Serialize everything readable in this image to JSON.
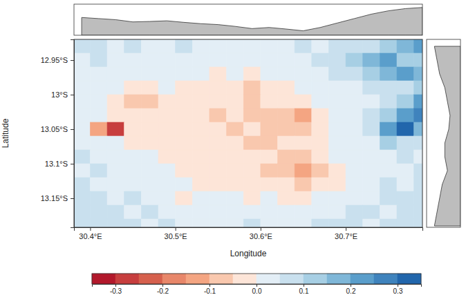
{
  "chart_data": {
    "type": "heatmap",
    "x_label": "Longitude",
    "y_label": "Latitude",
    "xlim": [
      30.381,
      30.79
    ],
    "ylim": [
      -13.192,
      -12.92
    ],
    "xticks": [
      {
        "value": 30.4,
        "label": "30.4°E"
      },
      {
        "value": 30.5,
        "label": "30.5°E"
      },
      {
        "value": 30.6,
        "label": "30.6°E"
      },
      {
        "value": 30.7,
        "label": "30.7°E"
      }
    ],
    "yticks": [
      {
        "value": -12.95,
        "label": "12.95°S"
      },
      {
        "value": -13,
        "label": "13°S"
      },
      {
        "value": -13.05,
        "label": "13.05°S"
      },
      {
        "value": -13.1,
        "label": "13.1°S"
      },
      {
        "value": -13.15,
        "label": "13.15°S"
      }
    ],
    "x_bins": [
      30.38,
      30.4,
      30.42,
      30.44,
      30.46,
      30.48,
      30.5,
      30.52,
      30.54,
      30.56,
      30.58,
      30.6,
      30.62,
      30.64,
      30.66,
      30.68,
      30.7,
      30.72,
      30.74,
      30.76,
      30.78,
      30.8
    ],
    "y_bins": [
      -12.92,
      -12.94,
      -12.96,
      -12.98,
      -13,
      -13.02,
      -13.04,
      -13.06,
      -13.08,
      -13.1,
      -13.12,
      -13.14,
      -13.16,
      -13.18,
      -13.2
    ],
    "z": [
      [
        0.05,
        0.06,
        0.04,
        0.05,
        0.03,
        0.04,
        0.05,
        0.03,
        0.04,
        0.02,
        0.03,
        0.04,
        0.03,
        0.05,
        0.04,
        0.06,
        0.05,
        0.08,
        0.12,
        0.15,
        0.22
      ],
      [
        0.04,
        0.05,
        0.03,
        0.04,
        0.02,
        0.03,
        0.02,
        0.03,
        0.01,
        0.02,
        0.01,
        0.02,
        0.03,
        0.04,
        0.06,
        0.08,
        0.12,
        0.18,
        0.22,
        0.12,
        0.1
      ],
      [
        0.03,
        0.04,
        0.02,
        0.01,
        0.02,
        0.01,
        0.0,
        0.01,
        -0.01,
        0.0,
        -0.02,
        0.01,
        0.02,
        0.03,
        0.04,
        0.05,
        0.07,
        0.1,
        0.16,
        0.24,
        0.18
      ],
      [
        0.03,
        0.02,
        0.01,
        -0.03,
        -0.02,
        0.0,
        -0.01,
        -0.02,
        -0.03,
        -0.04,
        -0.06,
        -0.03,
        -0.02,
        0.0,
        0.02,
        0.03,
        0.04,
        0.05,
        0.06,
        0.08,
        0.12
      ],
      [
        0.02,
        0.01,
        -0.02,
        -0.06,
        -0.08,
        -0.03,
        -0.02,
        -0.03,
        -0.04,
        -0.05,
        -0.07,
        -0.05,
        -0.04,
        -0.03,
        0.01,
        0.02,
        0.03,
        0.04,
        0.08,
        0.14,
        0.2
      ],
      [
        0.02,
        0.0,
        -0.01,
        -0.04,
        -0.05,
        -0.02,
        -0.03,
        -0.04,
        -0.06,
        -0.05,
        -0.08,
        -0.06,
        -0.1,
        -0.14,
        -0.04,
        0.0,
        0.02,
        0.05,
        0.12,
        0.22,
        0.28
      ],
      [
        0.03,
        -0.12,
        -0.28,
        -0.03,
        -0.02,
        -0.01,
        -0.03,
        -0.05,
        -0.04,
        -0.06,
        -0.05,
        -0.07,
        -0.09,
        -0.06,
        -0.03,
        0.0,
        0.03,
        0.08,
        0.24,
        0.3,
        0.18
      ],
      [
        0.04,
        0.02,
        0.0,
        -0.01,
        -0.02,
        -0.01,
        -0.02,
        -0.04,
        -0.03,
        -0.05,
        -0.07,
        -0.06,
        -0.05,
        -0.04,
        -0.02,
        0.0,
        0.02,
        0.04,
        0.1,
        0.08,
        0.06
      ],
      [
        0.05,
        0.03,
        0.02,
        0.01,
        0.0,
        -0.01,
        -0.02,
        -0.03,
        -0.04,
        -0.03,
        -0.05,
        -0.04,
        -0.07,
        -0.06,
        -0.03,
        0.0,
        0.02,
        0.03,
        0.04,
        0.05,
        0.04
      ],
      [
        0.04,
        0.05,
        0.03,
        0.02,
        0.01,
        0.0,
        -0.01,
        -0.02,
        -0.03,
        -0.02,
        -0.04,
        -0.06,
        -0.09,
        -0.12,
        -0.08,
        -0.02,
        0.01,
        0.03,
        0.04,
        0.03,
        0.05
      ],
      [
        0.05,
        0.04,
        0.03,
        0.02,
        0.03,
        0.01,
        0.0,
        -0.01,
        -0.02,
        -0.01,
        -0.02,
        -0.03,
        -0.04,
        -0.07,
        -0.05,
        -0.01,
        0.02,
        0.03,
        0.05,
        0.04,
        0.06
      ],
      [
        0.06,
        0.05,
        0.04,
        0.05,
        0.03,
        0.02,
        -0.04,
        0.01,
        0.0,
        0.01,
        -0.01,
        0.0,
        -0.02,
        -0.01,
        0.0,
        0.02,
        0.03,
        0.04,
        0.05,
        0.06,
        0.05
      ],
      [
        0.05,
        0.07,
        0.06,
        0.04,
        0.05,
        0.03,
        0.02,
        0.03,
        0.02,
        0.03,
        0.01,
        0.02,
        0.01,
        0.02,
        0.03,
        0.04,
        0.05,
        0.06,
        0.04,
        0.05,
        0.06
      ],
      [
        0.06,
        0.05,
        0.07,
        0.06,
        0.04,
        0.05,
        0.04,
        0.03,
        0.04,
        0.03,
        0.05,
        0.04,
        0.03,
        0.04,
        0.05,
        0.06,
        0.05,
        0.04,
        0.06,
        0.07,
        0.05
      ]
    ],
    "colorbar": {
      "range": [
        -0.35,
        0.35
      ],
      "breaks": [
        -0.35,
        -0.3,
        -0.25,
        -0.2,
        -0.15,
        -0.1,
        -0.05,
        0,
        0.05,
        0.1,
        0.15,
        0.2,
        0.25,
        0.3,
        0.35
      ],
      "colors": [
        "#b2182b",
        "#c73e3e",
        "#d6604d",
        "#e8876a",
        "#f4a582",
        "#f9c8ae",
        "#fde5d8",
        "#e3eef6",
        "#c9e0ee",
        "#a7cfe4",
        "#7fb7d8",
        "#5a9ecb",
        "#3f83bd",
        "#2166ac"
      ],
      "ticks": [
        -0.3,
        -0.2,
        -0.1,
        {
          "value": 0,
          "label": "0.0"
        },
        0.1,
        0.2,
        0.3
      ]
    },
    "top_profile": {
      "x": [
        30.39,
        30.41,
        30.43,
        30.45,
        30.47,
        30.49,
        30.51,
        30.53,
        30.55,
        30.57,
        30.59,
        30.61,
        30.63,
        30.65,
        30.67,
        30.69,
        30.71,
        30.73,
        30.75,
        30.77,
        30.79
      ],
      "values": [
        0.04,
        0.035,
        0.03,
        0.02,
        0.022,
        0.025,
        0.018,
        0.012,
        0.008,
        0.0,
        -0.01,
        -0.005,
        -0.012,
        -0.02,
        -0.005,
        0.015,
        0.035,
        0.055,
        0.07,
        0.08,
        0.085
      ],
      "lim": [
        -0.04,
        0.1
      ]
    },
    "right_profile": {
      "y": [
        -12.93,
        -12.95,
        -12.97,
        -12.99,
        -13.01,
        -13.03,
        -13.05,
        -13.07,
        -13.09,
        -13.11,
        -13.13,
        -13.15,
        -13.17,
        -13.19
      ],
      "values": [
        0.06,
        0.05,
        0.04,
        0.02,
        0.01,
        0.0,
        0.005,
        0.02,
        0.02,
        0.01,
        0.03,
        0.04,
        0.05,
        0.06
      ],
      "lim": [
        -0.04,
        0.09
      ]
    },
    "color": "#bdbdbd"
  }
}
